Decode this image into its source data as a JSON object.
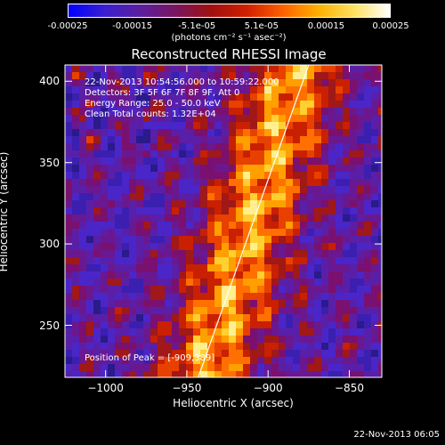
{
  "colorbar": {
    "gradient": [
      "#0000ff",
      "#3a1fd0",
      "#5b1fa0",
      "#7a1560",
      "#a01010",
      "#d02000",
      "#ff6000",
      "#ffb000",
      "#ffe060",
      "#ffffff"
    ],
    "ticks": [
      "-0.00025",
      "-0.00015",
      "-5.1e-05",
      "5.1e-05",
      "0.00015",
      "0.00025"
    ],
    "units_label": "(photons cm⁻² s⁻¹ asec⁻²)"
  },
  "chart_data": {
    "type": "heatmap",
    "title": "Reconstructed RHESSI Image",
    "xlabel": "Heliocentric X (arcsec)",
    "ylabel": "Heliocentric Y (arcsec)",
    "xlim": [
      -1025,
      -830
    ],
    "ylim": [
      218,
      410
    ],
    "x_ticks": [
      -1000,
      -950,
      -900,
      -850
    ],
    "y_ticks": [
      250,
      300,
      350,
      400
    ],
    "x_tick_labels": [
      "−1000",
      "−950",
      "−900",
      "−850"
    ],
    "y_tick_labels": [
      "250",
      "300",
      "350",
      "400"
    ],
    "value_range": [
      -0.00025,
      0.00025
    ],
    "limb_line": [
      [
        -943,
        218
      ],
      [
        -875,
        410
      ]
    ],
    "peak": [
      -909,
      389
    ]
  },
  "annotations": {
    "time_range": "22-Nov-2013 10:54:56.000 to 10:59:22.000",
    "detectors": "Detectors: 3F 5F 6F 7F 8F 9F, Att 0",
    "energy": "Energy Range: 25.0 - 50.0 keV",
    "clean": "Clean    Total counts: 1.32E+04",
    "peak_text": "Position of Peak = [-909,389]"
  },
  "timestamp": "22-Nov-2013 06:05"
}
